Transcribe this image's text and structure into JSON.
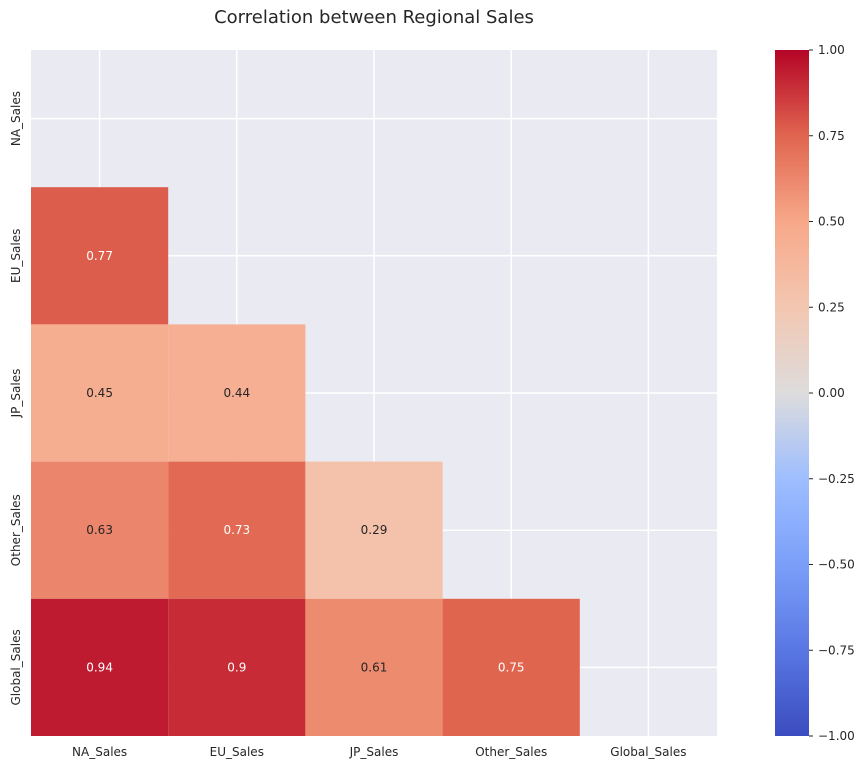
{
  "chart_data": {
    "type": "heatmap",
    "title": "Correlation between Regional Sales",
    "categories": [
      "NA_Sales",
      "EU_Sales",
      "JP_Sales",
      "Other_Sales",
      "Global_Sales"
    ],
    "mask": "upper-triangle-including-diagonal",
    "cells": [
      {
        "row": "EU_Sales",
        "col": "NA_Sales",
        "value": 0.77,
        "label": "0.77"
      },
      {
        "row": "JP_Sales",
        "col": "NA_Sales",
        "value": 0.45,
        "label": "0.45"
      },
      {
        "row": "JP_Sales",
        "col": "EU_Sales",
        "value": 0.44,
        "label": "0.44"
      },
      {
        "row": "Other_Sales",
        "col": "NA_Sales",
        "value": 0.63,
        "label": "0.63"
      },
      {
        "row": "Other_Sales",
        "col": "EU_Sales",
        "value": 0.73,
        "label": "0.73"
      },
      {
        "row": "Other_Sales",
        "col": "JP_Sales",
        "value": 0.29,
        "label": "0.29"
      },
      {
        "row": "Global_Sales",
        "col": "NA_Sales",
        "value": 0.94,
        "label": "0.94"
      },
      {
        "row": "Global_Sales",
        "col": "EU_Sales",
        "value": 0.9,
        "label": "0.9"
      },
      {
        "row": "Global_Sales",
        "col": "JP_Sales",
        "value": 0.61,
        "label": "0.61"
      },
      {
        "row": "Global_Sales",
        "col": "Other_Sales",
        "value": 0.75,
        "label": "0.75"
      }
    ],
    "colorbar": {
      "colormap": "coolwarm",
      "vmin": -1.0,
      "vmax": 1.0,
      "ticks": [
        1.0,
        0.75,
        0.5,
        0.25,
        0.0,
        -0.25,
        -0.5,
        -0.75,
        -1.0
      ],
      "tick_labels": [
        "1.00",
        "0.75",
        "0.50",
        "0.25",
        "0.00",
        "−0.25",
        "−0.50",
        "−0.75",
        "−1.00"
      ]
    },
    "grid": true,
    "background": "#eaeaf2"
  }
}
